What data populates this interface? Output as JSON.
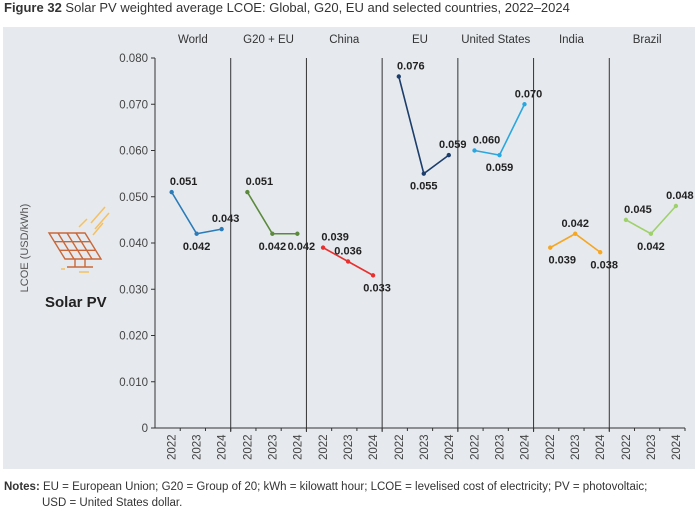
{
  "title": {
    "figure": "Figure 32",
    "text": "Solar PV weighted average LCOE: Global, G20, EU and selected countries, 2022–2024"
  },
  "icon": {
    "name": "solar-panel-icon",
    "label": "Solar PV"
  },
  "notes": {
    "label": "Notes:",
    "text": "EU = European Union; G20 = Group of 20; kWh = kilowatt hour; LCOE = levelised cost of electricity; PV = photovoltaic;",
    "text2": "USD = United States dollar."
  },
  "chart_data": {
    "type": "line",
    "ylabel": "LCOE (USD/kWh)",
    "ylim": [
      0,
      0.08
    ],
    "yticks": [
      "0",
      "0.010",
      "0.020",
      "0.030",
      "0.040",
      "0.050",
      "0.060",
      "0.070",
      "0.080"
    ],
    "x": [
      "2022",
      "2023",
      "2024"
    ],
    "grid": false,
    "panels": [
      {
        "name": "World",
        "color": "#2b7bb9",
        "values": [
          0.051,
          0.042,
          0.043
        ],
        "labels": [
          "0.051",
          "0.042",
          "0.043"
        ]
      },
      {
        "name": "G20 + EU",
        "color": "#5b8a3c",
        "values": [
          0.051,
          0.042,
          0.042
        ],
        "labels": [
          "0.051",
          "0.042",
          "0.042"
        ]
      },
      {
        "name": "China",
        "color": "#e8312f",
        "values": [
          0.039,
          0.036,
          0.033
        ],
        "labels": [
          "0.039",
          "0.036",
          "0.033"
        ]
      },
      {
        "name": "EU",
        "color": "#1d3e6b",
        "values": [
          0.076,
          0.055,
          0.059
        ],
        "labels": [
          "0.076",
          "0.055",
          "0.059"
        ]
      },
      {
        "name": "United States",
        "color": "#2ba7df",
        "values": [
          0.06,
          0.059,
          0.07
        ],
        "labels": [
          "0.060",
          "0.059",
          "0.070"
        ]
      },
      {
        "name": "India",
        "color": "#f5a623",
        "values": [
          0.039,
          0.042,
          0.038
        ],
        "labels": [
          "0.039",
          "0.042",
          "0.038"
        ]
      },
      {
        "name": "Brazil",
        "color": "#9fd16b",
        "values": [
          0.045,
          0.042,
          0.048
        ],
        "labels": [
          "0.045",
          "0.042",
          "0.048"
        ]
      }
    ]
  }
}
